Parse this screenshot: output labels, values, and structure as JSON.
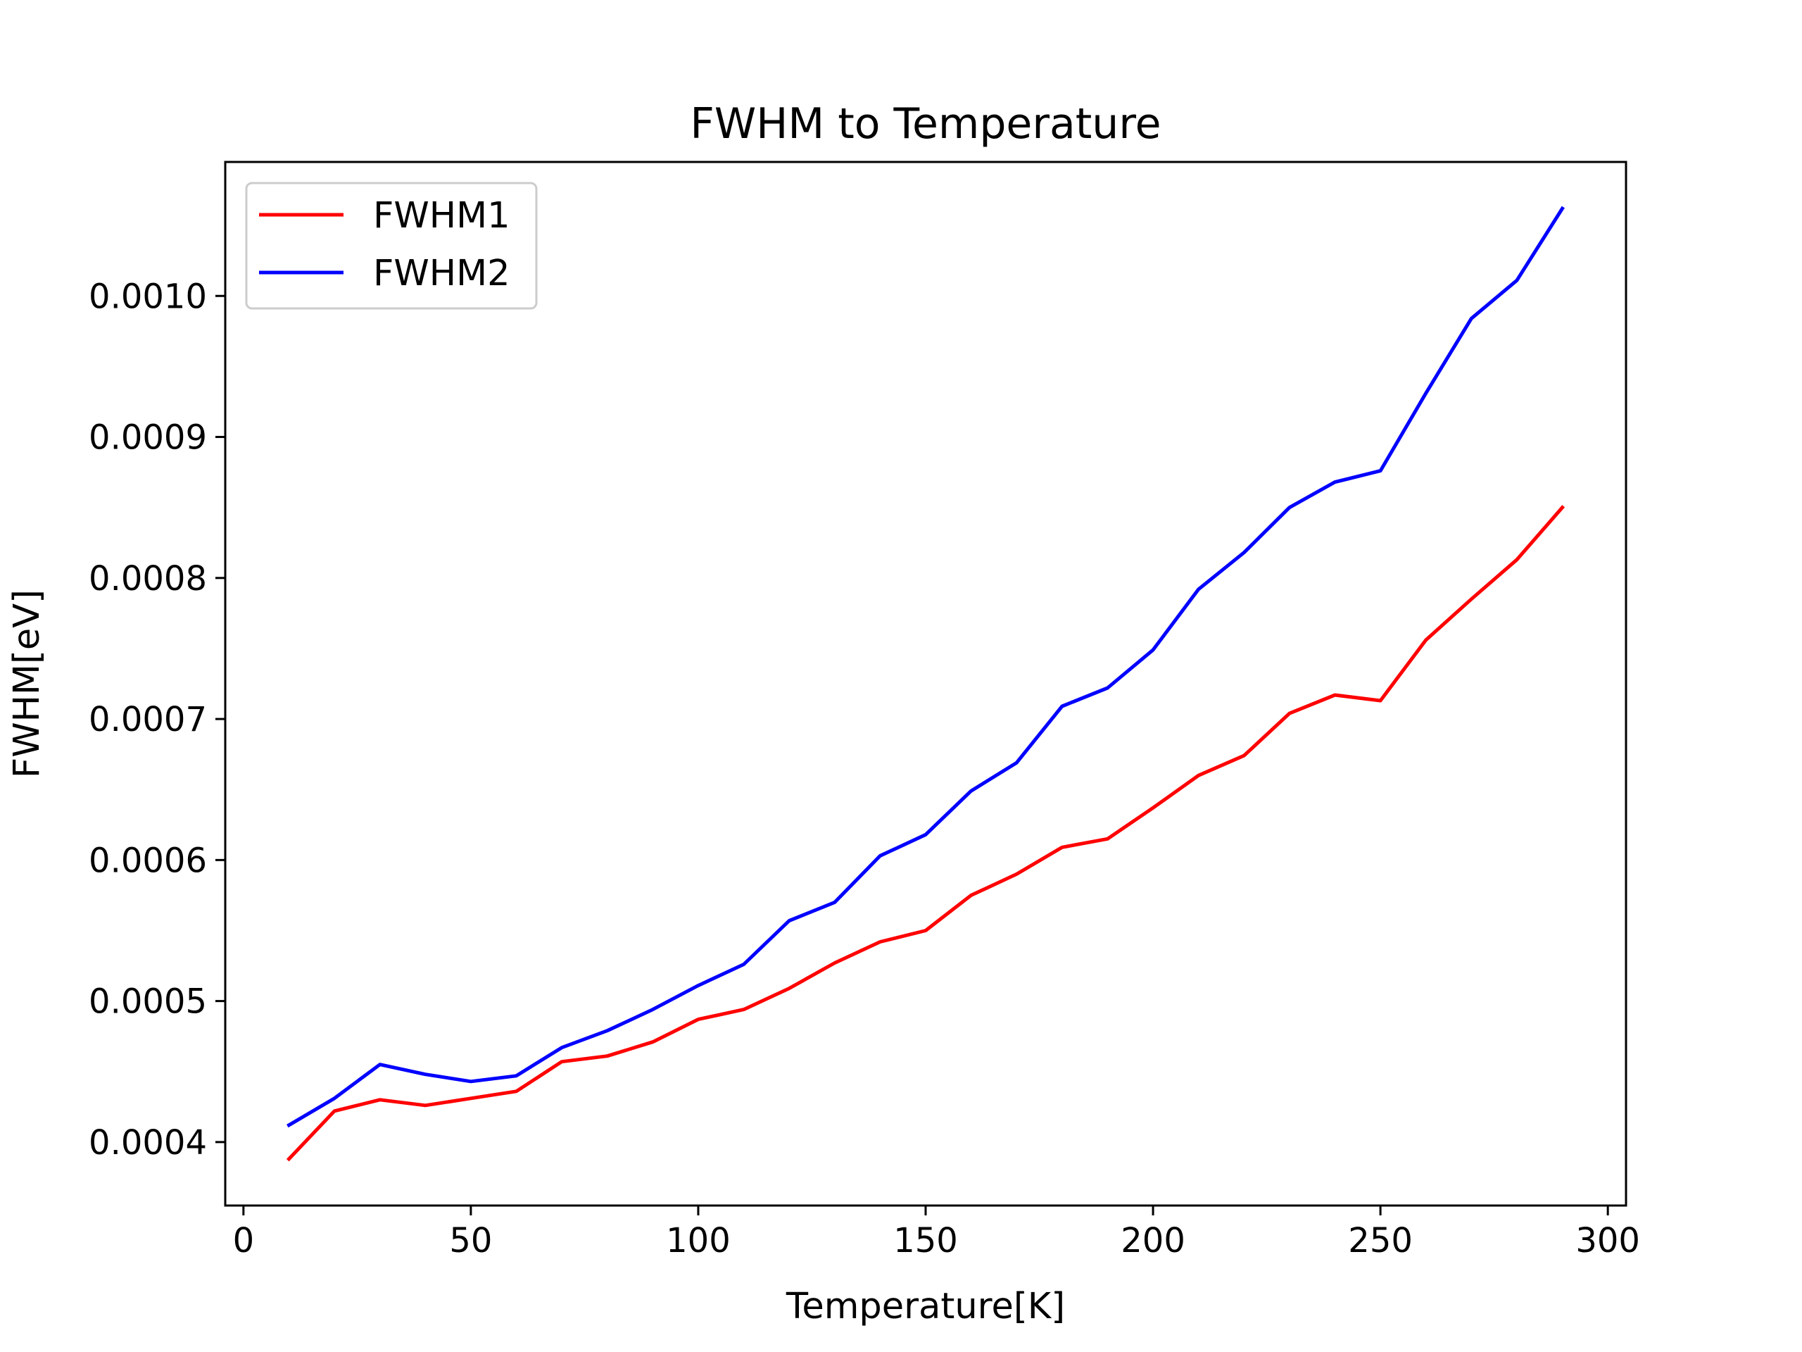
{
  "chart_data": {
    "type": "line",
    "title": "FWHM to Temperature",
    "xlabel": "Temperature[K]",
    "ylabel": "FWHM[eV]",
    "xlim": [
      -4,
      304
    ],
    "ylim": [
      0.000355,
      0.001095
    ],
    "xticks": [
      0,
      50,
      100,
      150,
      200,
      250,
      300
    ],
    "xtick_labels": [
      "0",
      "50",
      "100",
      "150",
      "200",
      "250",
      "300"
    ],
    "yticks": [
      0.0004,
      0.0005,
      0.0006,
      0.0007,
      0.0008,
      0.0009,
      0.001
    ],
    "ytick_labels": [
      "0.0004",
      "0.0005",
      "0.0006",
      "0.0007",
      "0.0008",
      "0.0009",
      "0.0010"
    ],
    "grid": false,
    "legend_position": "upper-left",
    "x": [
      10,
      20,
      30,
      40,
      50,
      60,
      70,
      80,
      90,
      100,
      110,
      120,
      130,
      140,
      150,
      160,
      170,
      180,
      190,
      200,
      210,
      220,
      230,
      240,
      250,
      260,
      270,
      280,
      290
    ],
    "series": [
      {
        "name": "FWHM1",
        "color": "#ff0000",
        "values": [
          0.000388,
          0.000422,
          0.00043,
          0.000426,
          0.000431,
          0.000436,
          0.000457,
          0.000461,
          0.000471,
          0.000487,
          0.000494,
          0.000509,
          0.000527,
          0.000542,
          0.00055,
          0.000575,
          0.00059,
          0.000609,
          0.000615,
          0.000637,
          0.00066,
          0.000674,
          0.000704,
          0.000717,
          0.000713,
          0.000756,
          0.000785,
          0.000813,
          0.00085
        ]
      },
      {
        "name": "FWHM2",
        "color": "#0000ff",
        "values": [
          0.000412,
          0.000431,
          0.000455,
          0.000448,
          0.000443,
          0.000447,
          0.000467,
          0.000479,
          0.000494,
          0.000511,
          0.000526,
          0.000557,
          0.00057,
          0.000603,
          0.000618,
          0.000649,
          0.000669,
          0.000709,
          0.000722,
          0.000749,
          0.000792,
          0.000818,
          0.00085,
          0.000868,
          0.000876,
          0.000931,
          0.000984,
          0.001011,
          0.001062
        ]
      }
    ]
  }
}
